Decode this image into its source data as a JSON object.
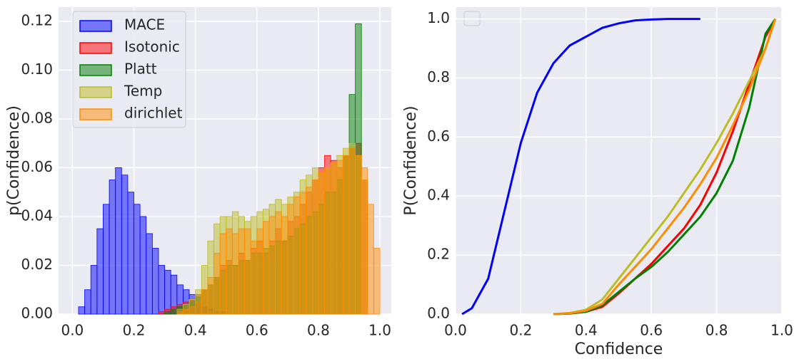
{
  "chart_data": [
    {
      "type": "histogram",
      "ylabel": "p(Confidence)",
      "bins": [
        0,
        0.02,
        0.04,
        0.06,
        0.08,
        0.1,
        0.12,
        0.14,
        0.16,
        0.18,
        0.2,
        0.22,
        0.24,
        0.26,
        0.28,
        0.3,
        0.32,
        0.34,
        0.36,
        0.38,
        0.4,
        0.42,
        0.44,
        0.46,
        0.48,
        0.5,
        0.52,
        0.54,
        0.56,
        0.58,
        0.6,
        0.62,
        0.64,
        0.66,
        0.68,
        0.7,
        0.72,
        0.74,
        0.76,
        0.78,
        0.8,
        0.82,
        0.84,
        0.86,
        0.88,
        0.9,
        0.92,
        0.94,
        0.96,
        0.98,
        1.0
      ],
      "series": [
        {
          "name": "MACE",
          "color": "#0000ff",
          "values": [
            0,
            0.003,
            0.01,
            0.02,
            0.035,
            0.045,
            0.055,
            0.06,
            0.057,
            0.05,
            0.045,
            0.04,
            0.033,
            0.027,
            0.02,
            0.018,
            0.016,
            0.012,
            0.01,
            0.008,
            0.005,
            0.003,
            0.002,
            0.001,
            0.001,
            0,
            0,
            0,
            0,
            0,
            0,
            0,
            0,
            0,
            0,
            0,
            0,
            0,
            0,
            0,
            0,
            0,
            0,
            0,
            0,
            0,
            0,
            0,
            0,
            0
          ]
        },
        {
          "name": "Isotonic",
          "color": "#ff0000",
          "values": [
            0,
            0,
            0,
            0,
            0,
            0,
            0,
            0,
            0,
            0,
            0,
            0,
            0,
            0,
            0.001,
            0.002,
            0.003,
            0.004,
            0.005,
            0.006,
            0.008,
            0.01,
            0.012,
            0.015,
            0.02,
            0.022,
            0.02,
            0.025,
            0.022,
            0.027,
            0.03,
            0.025,
            0.03,
            0.035,
            0.03,
            0.038,
            0.04,
            0.045,
            0.05,
            0.055,
            0.06,
            0.065,
            0.063,
            0.06,
            0.065,
            0.068,
            0.07,
            0.055,
            0,
            0
          ]
        },
        {
          "name": "Platt",
          "color": "#008000",
          "values": [
            0,
            0,
            0,
            0,
            0,
            0,
            0,
            0,
            0,
            0,
            0,
            0,
            0,
            0,
            0,
            0.001,
            0.002,
            0.003,
            0.004,
            0.005,
            0.007,
            0.01,
            0.012,
            0.015,
            0.018,
            0.02,
            0.02,
            0.022,
            0.022,
            0.025,
            0.025,
            0.027,
            0.028,
            0.03,
            0.03,
            0.032,
            0.035,
            0.037,
            0.04,
            0.042,
            0.045,
            0.05,
            0.05,
            0.055,
            0.065,
            0.09,
            0.119,
            0,
            0,
            0
          ]
        },
        {
          "name": "Temp",
          "color": "#bcbd22",
          "values": [
            0,
            0,
            0,
            0,
            0,
            0,
            0,
            0,
            0,
            0,
            0,
            0,
            0,
            0,
            0,
            0,
            0,
            0.002,
            0.004,
            0.006,
            0.01,
            0.02,
            0.03,
            0.037,
            0.04,
            0.04,
            0.042,
            0.04,
            0.038,
            0.04,
            0.042,
            0.043,
            0.045,
            0.047,
            0.045,
            0.048,
            0.05,
            0.055,
            0.057,
            0.06,
            0.058,
            0.06,
            0.062,
            0.065,
            0.068,
            0.07,
            0.065,
            0.055,
            0,
            0
          ]
        },
        {
          "name": "dirichlet",
          "color": "#ff8c00",
          "values": [
            0,
            0,
            0,
            0,
            0,
            0,
            0,
            0,
            0,
            0,
            0,
            0,
            0,
            0,
            0,
            0,
            0,
            0.001,
            0.002,
            0.003,
            0.005,
            0.01,
            0.015,
            0.025,
            0.033,
            0.035,
            0.033,
            0.035,
            0.035,
            0.03,
            0.035,
            0.038,
            0.04,
            0.042,
            0.04,
            0.045,
            0.048,
            0.05,
            0.052,
            0.055,
            0.058,
            0.06,
            0.062,
            0.063,
            0.065,
            0.068,
            0.065,
            0.06,
            0.045,
            0.027
          ]
        }
      ],
      "xlim": [
        -0.045,
        1.037
      ],
      "ylim": [
        0,
        0.1258
      ],
      "xticks": [
        {
          "value": 0,
          "label": "0.0"
        },
        {
          "value": 0.2,
          "label": "0.2"
        },
        {
          "value": 0.4,
          "label": "0.4"
        },
        {
          "value": 0.6,
          "label": "0.6"
        },
        {
          "value": 0.8,
          "label": "0.8"
        },
        {
          "value": 1,
          "label": "1.0"
        }
      ],
      "yticks": [
        {
          "value": 0,
          "label": "0.00"
        },
        {
          "value": 0.02,
          "label": "0.02"
        },
        {
          "value": 0.04,
          "label": "0.04"
        },
        {
          "value": 0.06,
          "label": "0.06"
        },
        {
          "value": 0.08,
          "label": "0.08"
        },
        {
          "value": 0.1,
          "label": "0.10"
        },
        {
          "value": 0.12,
          "label": "0.12"
        }
      ],
      "grid": true,
      "legend": "upper left"
    },
    {
      "type": "line",
      "xlabel": "Confidence",
      "ylabel": "P(Confidence)",
      "x": [
        0.02,
        0.05,
        0.1,
        0.15,
        0.2,
        0.25,
        0.3,
        0.35,
        0.4,
        0.45,
        0.5,
        0.55,
        0.6,
        0.65,
        0.7,
        0.75,
        0.8,
        0.85,
        0.9,
        0.95,
        0.98
      ],
      "series": [
        {
          "name": "MACE",
          "color": "#0000ff",
          "values": [
            0,
            0.02,
            0.12,
            0.35,
            0.58,
            0.75,
            0.85,
            0.91,
            0.94,
            0.97,
            0.985,
            0.995,
            0.998,
            1,
            1,
            1,
            null,
            null,
            null,
            null,
            null
          ]
        },
        {
          "name": "Isotonic",
          "color": "#ff0000",
          "values": [
            null,
            null,
            null,
            null,
            null,
            null,
            0,
            0.002,
            0.008,
            0.025,
            0.07,
            0.12,
            0.17,
            0.23,
            0.29,
            0.37,
            0.48,
            0.62,
            0.78,
            0.94,
            1
          ]
        },
        {
          "name": "Platt",
          "color": "#008000",
          "values": [
            null,
            null,
            null,
            null,
            null,
            null,
            0,
            0.002,
            0.008,
            0.03,
            0.075,
            0.12,
            0.16,
            0.21,
            0.27,
            0.33,
            0.41,
            0.52,
            0.7,
            0.95,
            1
          ]
        },
        {
          "name": "Temp",
          "color": "#bcbd22",
          "values": [
            null,
            null,
            null,
            null,
            null,
            null,
            0,
            0.004,
            0.015,
            0.05,
            0.12,
            0.19,
            0.26,
            0.33,
            0.41,
            0.49,
            0.58,
            0.68,
            0.79,
            0.9,
            1
          ]
        },
        {
          "name": "dirichlet",
          "color": "#ff8c00",
          "values": [
            null,
            null,
            null,
            null,
            null,
            null,
            0,
            0.003,
            0.012,
            0.035,
            0.1,
            0.16,
            0.22,
            0.29,
            0.36,
            0.44,
            0.53,
            0.64,
            0.76,
            0.9,
            1
          ]
        }
      ],
      "xlim": [
        0,
        1
      ],
      "ylim": [
        0,
        1.04
      ],
      "xticks": [
        {
          "value": 0,
          "label": "0.0"
        },
        {
          "value": 0.2,
          "label": "0.2"
        },
        {
          "value": 0.4,
          "label": "0.4"
        },
        {
          "value": 0.6,
          "label": "0.6"
        },
        {
          "value": 0.8,
          "label": "0.8"
        },
        {
          "value": 1,
          "label": "1.0"
        }
      ],
      "yticks": [
        {
          "value": 0,
          "label": "0.0"
        },
        {
          "value": 0.2,
          "label": "0.2"
        },
        {
          "value": 0.4,
          "label": "0.4"
        },
        {
          "value": 0.6,
          "label": "0.6"
        },
        {
          "value": 0.8,
          "label": "0.8"
        },
        {
          "value": 1,
          "label": "1.0"
        }
      ],
      "grid": true
    }
  ]
}
